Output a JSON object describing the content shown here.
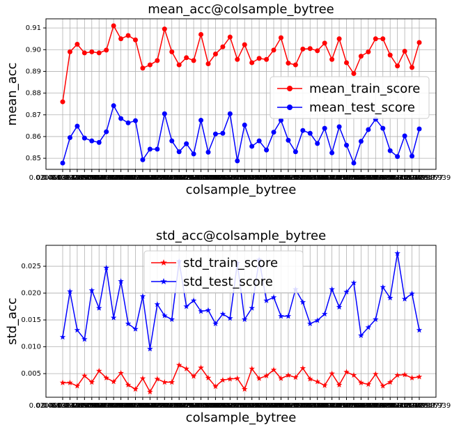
{
  "chart_data": [
    {
      "type": "line",
      "title": "mean_acc@colsample_bytree",
      "x_label": "colsample_bytree",
      "y_label": "mean_acc",
      "categories": [
        "0.0",
        "0.02040816326530612",
        "0.04081632653061224",
        "0.061224489795918366",
        "0.08163265306122448",
        "0.10204081632653061",
        "0.12244897959183673",
        "0.14285714285714285",
        "0.16326530612244897",
        "0.1836734693877551",
        "0.20408163265306123",
        "0.22448979591836735",
        "0.24489795918367346",
        "0.2653061224489796",
        "0.2857142857142857",
        "0.30612244897959184",
        "0.32653061224489793",
        "0.3469387755102041",
        "0.3673469387755102",
        "0.3877551020408163",
        "0.40816326530612246",
        "0.42857142857142855",
        "0.4489795918367347",
        "0.46938775510204084",
        "0.4897959183673469",
        "0.5102040816326531",
        "0.5306122448979592",
        "0.5510204081632653",
        "0.5714285714285714",
        "0.5918367346938775",
        "0.6122448979591837",
        "0.6326530612244898",
        "0.6530612244897959",
        "0.673469387755102",
        "0.6938775510204082",
        "0.7142857142857143",
        "0.7346938775510204",
        "0.7551020408163265",
        "0.7755102040816326",
        "0.7959183673469388",
        "0.8163265306122449",
        "0.8367346938775511",
        "0.8571428571428571",
        "0.8775510204081632",
        "0.8979591836734694",
        "0.9183673469387755",
        "0.9387755102040817",
        "0.9591836734693877",
        "0.9795918367346939",
        "1.0"
      ],
      "series": [
        {
          "name": "mean_train_score",
          "color": "#ff0000",
          "marker": "circle",
          "values": [
            0.876,
            0.899,
            0.9025,
            0.8985,
            0.899,
            0.8985,
            0.8998,
            0.911,
            0.905,
            0.9065,
            0.9045,
            0.8915,
            0.893,
            0.895,
            0.9095,
            0.899,
            0.893,
            0.8963,
            0.895,
            0.907,
            0.8935,
            0.898,
            0.9013,
            0.9058,
            0.8955,
            0.9023,
            0.894,
            0.896,
            0.8955,
            0.8998,
            0.9055,
            0.8938,
            0.893,
            0.9003,
            0.9005,
            0.8995,
            0.903,
            0.8955,
            0.905,
            0.894,
            0.889,
            0.897,
            0.899,
            0.905,
            0.905,
            0.8975,
            0.8925,
            0.8993,
            0.8918,
            0.9033
          ]
        },
        {
          "name": "mean_test_score",
          "color": "#0000ff",
          "marker": "circle",
          "values": [
            0.8478,
            0.8595,
            0.8648,
            0.8593,
            0.858,
            0.8573,
            0.8622,
            0.8742,
            0.8683,
            0.8663,
            0.8673,
            0.8493,
            0.8542,
            0.8542,
            0.8705,
            0.858,
            0.853,
            0.8567,
            0.852,
            0.8675,
            0.8528,
            0.8612,
            0.8615,
            0.8705,
            0.8488,
            0.8653,
            0.8555,
            0.858,
            0.8538,
            0.862,
            0.8675,
            0.8583,
            0.853,
            0.8628,
            0.8615,
            0.8568,
            0.8638,
            0.8525,
            0.8645,
            0.856,
            0.8478,
            0.8578,
            0.8632,
            0.868,
            0.8638,
            0.8535,
            0.8508,
            0.8603,
            0.851,
            0.8635
          ]
        }
      ],
      "ylim": [
        0.8449,
        0.9142
      ],
      "yticks": [
        0.85,
        0.86,
        0.87,
        0.88,
        0.89,
        {
          "value": 0.9,
          "label": "0.90"
        },
        0.91
      ],
      "grid": true,
      "legend": "center right"
    },
    {
      "type": "line",
      "title": "std_acc@colsample_bytree",
      "x_label": "colsample_bytree",
      "y_label": "std_acc",
      "categories": [
        "0.0",
        "0.02040816326530612",
        "0.04081632653061224",
        "0.061224489795918366",
        "0.08163265306122448",
        "0.10204081632653061",
        "0.12244897959183673",
        "0.14285714285714285",
        "0.16326530612244897",
        "0.1836734693877551",
        "0.20408163265306123",
        "0.22448979591836735",
        "0.24489795918367346",
        "0.2653061224489796",
        "0.2857142857142857",
        "0.30612244897959184",
        "0.32653061224489793",
        "0.3469387755102041",
        "0.3673469387755102",
        "0.3877551020408163",
        "0.40816326530612246",
        "0.42857142857142855",
        "0.4489795918367347",
        "0.46938775510204084",
        "0.4897959183673469",
        "0.5102040816326531",
        "0.5306122448979592",
        "0.5510204081632653",
        "0.5714285714285714",
        "0.5918367346938775",
        "0.6122448979591837",
        "0.6326530612244898",
        "0.6530612244897959",
        "0.673469387755102",
        "0.6938775510204082",
        "0.7142857142857143",
        "0.7346938775510204",
        "0.7551020408163265",
        "0.7755102040816326",
        "0.7959183673469388",
        "0.8163265306122449",
        "0.8367346938775511",
        "0.8571428571428571",
        "0.8775510204081632",
        "0.8979591836734694",
        "0.9183673469387755",
        "0.9387755102040817",
        "0.9591836734693877",
        "0.9795918367346939",
        "1.0"
      ],
      "series": [
        {
          "name": "std_train_score",
          "color": "#ff0000",
          "marker": "star",
          "values": [
            0.0033,
            0.0033,
            0.0027,
            0.0046,
            0.0034,
            0.0055,
            0.0042,
            0.0035,
            0.0051,
            0.0029,
            0.0021,
            0.0041,
            0.0016,
            0.004,
            0.0034,
            0.0034,
            0.0066,
            0.0059,
            0.0045,
            0.0061,
            0.0042,
            0.0026,
            0.0038,
            0.004,
            0.0041,
            0.0021,
            0.0059,
            0.0041,
            0.0046,
            0.0057,
            0.0041,
            0.0047,
            0.0043,
            0.006,
            0.004,
            0.0035,
            0.0028,
            0.005,
            0.0029,
            0.0053,
            0.0047,
            0.0033,
            0.003,
            0.0049,
            0.0027,
            0.0034,
            0.0047,
            0.0048,
            0.0042,
            0.0044
          ]
        },
        {
          "name": "std_test_score",
          "color": "#0000ff",
          "marker": "star",
          "values": [
            0.0118,
            0.0203,
            0.0131,
            0.0114,
            0.0205,
            0.0172,
            0.0247,
            0.0154,
            0.0222,
            0.0143,
            0.0133,
            0.0194,
            0.0096,
            0.0179,
            0.0158,
            0.0151,
            0.0259,
            0.0175,
            0.0186,
            0.0166,
            0.0168,
            0.0143,
            0.0161,
            0.0153,
            0.0256,
            0.0151,
            0.0172,
            0.0262,
            0.0186,
            0.0192,
            0.0157,
            0.0157,
            0.0207,
            0.0183,
            0.0143,
            0.0149,
            0.0161,
            0.0207,
            0.0174,
            0.0202,
            0.0219,
            0.0121,
            0.0136,
            0.0151,
            0.0211,
            0.0191,
            0.0274,
            0.0189,
            0.0199,
            0.0131
          ]
        }
      ],
      "ylim": [
        0.0006,
        0.0289
      ],
      "yticks": [
        0.005,
        {
          "value": 0.01,
          "label": "0.010"
        },
        0.015,
        {
          "value": 0.02,
          "label": "0.020"
        },
        0.025
      ],
      "grid": true,
      "legend": "upper center"
    }
  ]
}
